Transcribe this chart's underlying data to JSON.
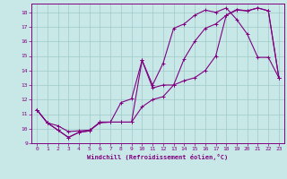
{
  "xlabel": "Windchill (Refroidissement éolien,°C)",
  "line_color": "#800080",
  "bg_color": "#c8e8e8",
  "grid_color": "#a0c8c8",
  "xlim": [
    -0.5,
    23.5
  ],
  "ylim": [
    9,
    18.6
  ],
  "xticks": [
    0,
    1,
    2,
    3,
    4,
    5,
    6,
    7,
    8,
    9,
    10,
    11,
    12,
    13,
    14,
    15,
    16,
    17,
    18,
    19,
    20,
    21,
    22,
    23
  ],
  "yticks": [
    9,
    10,
    11,
    12,
    13,
    14,
    15,
    16,
    17,
    18
  ],
  "line1_x": [
    0,
    1,
    2,
    3,
    4,
    5,
    6,
    7,
    8,
    9,
    10,
    11,
    12,
    13,
    14,
    15,
    16,
    17,
    18,
    19,
    20,
    21,
    22,
    23
  ],
  "line1_y": [
    11.3,
    10.4,
    10.2,
    9.8,
    9.85,
    9.9,
    10.4,
    10.45,
    10.45,
    10.45,
    11.5,
    12.0,
    12.2,
    13.0,
    13.3,
    13.5,
    14.0,
    15.0,
    17.8,
    18.15,
    18.1,
    18.3,
    18.1,
    13.5
  ],
  "line2_x": [
    0,
    1,
    2,
    3,
    4,
    5,
    6,
    7,
    8,
    9,
    10,
    11,
    12,
    13,
    14,
    15,
    16,
    17,
    18,
    19,
    20,
    21,
    22,
    23
  ],
  "line2_y": [
    11.3,
    10.4,
    9.9,
    9.4,
    9.75,
    9.85,
    10.45,
    10.45,
    11.8,
    12.05,
    14.7,
    13.0,
    14.5,
    16.9,
    17.2,
    17.8,
    18.15,
    18.0,
    18.3,
    17.5,
    16.5,
    14.9,
    14.9,
    13.5
  ],
  "line3_x": [
    0,
    1,
    2,
    3,
    4,
    5,
    6,
    7,
    8,
    9,
    10,
    11,
    12,
    13,
    14,
    15,
    16,
    17,
    18,
    19,
    20,
    21,
    22,
    23
  ],
  "line3_y": [
    11.3,
    10.4,
    9.9,
    9.4,
    9.75,
    9.85,
    10.45,
    10.45,
    10.45,
    10.45,
    14.7,
    12.8,
    13.0,
    13.0,
    14.8,
    16.0,
    16.9,
    17.2,
    17.8,
    18.2,
    18.1,
    18.3,
    18.1,
    13.5
  ]
}
